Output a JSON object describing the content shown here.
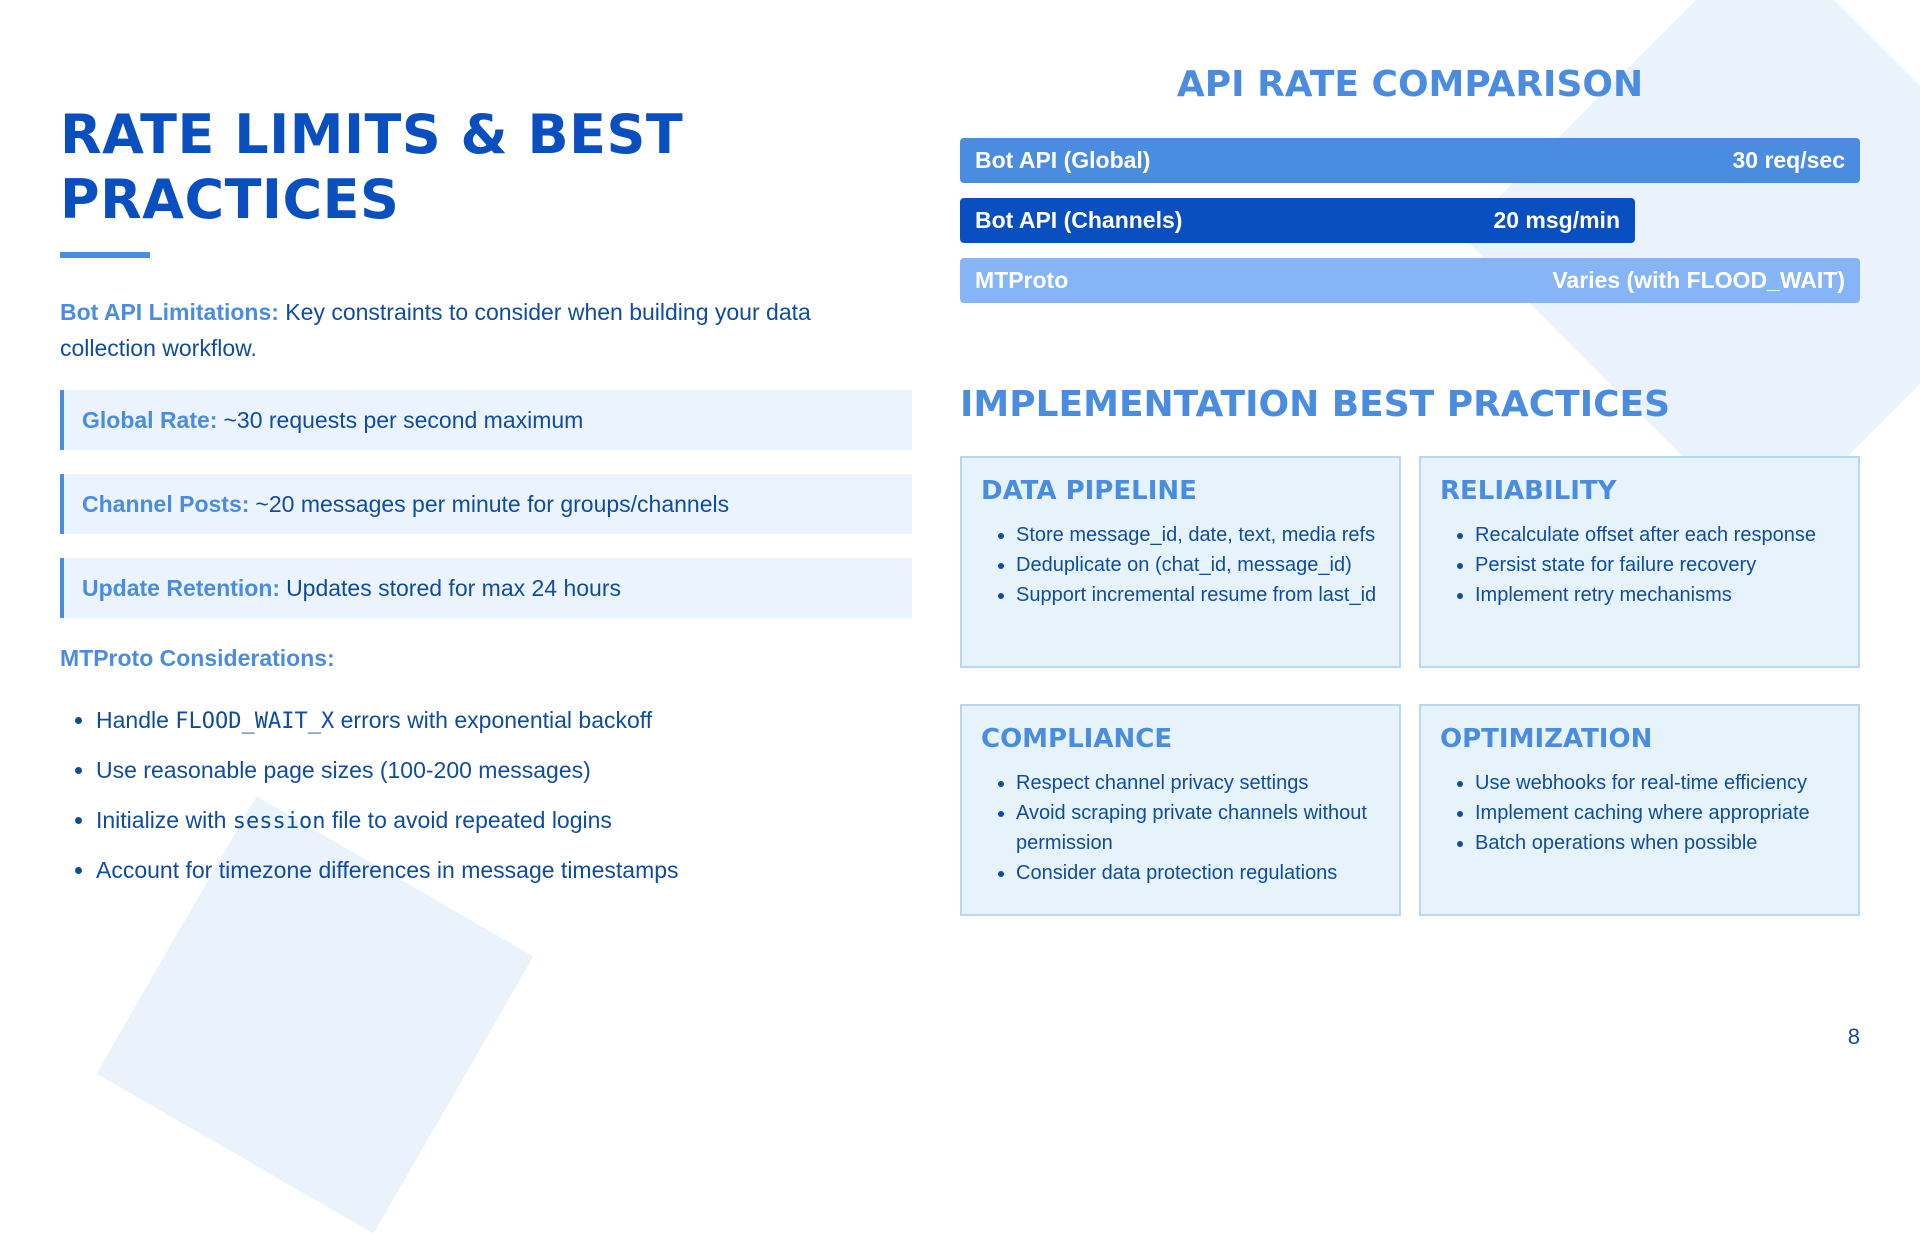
{
  "slide": {
    "title": "RATE LIMITS & BEST PRACTICES",
    "page_number": "8"
  },
  "left": {
    "intro_label": "Bot API Limitations:",
    "intro_text": " Key constraints to consider when building your data collection workflow.",
    "callouts": [
      {
        "label": "Global Rate:",
        "text": "~30 requests per second maximum"
      },
      {
        "label": "Channel Posts:",
        "text": "~20 messages per minute for groups/channels"
      },
      {
        "label": "Update Retention:",
        "text": "Updates stored for max 24 hours"
      }
    ],
    "mtproto_label": "MTProto Considerations:",
    "bullets": [
      {
        "pre": "Handle ",
        "code": "FLOOD_WAIT_X",
        "post": " errors with exponential backoff"
      },
      {
        "pre": "Use reasonable page sizes (100-200 messages)",
        "code": "",
        "post": ""
      },
      {
        "pre": "Initialize with ",
        "code": "session",
        "post": " file to avoid repeated logins"
      },
      {
        "pre": "Account for timezone differences in message timestamps",
        "code": "",
        "post": ""
      }
    ]
  },
  "comparison": {
    "title": "API RATE COMPARISON",
    "bars": [
      {
        "label": "Bot API (Global)",
        "value": "30 req/sec",
        "fill_fraction": 1.0,
        "color": "#4a8de0"
      },
      {
        "label": "Bot API (Channels)",
        "value": "20 msg/min",
        "fill_fraction": 0.75,
        "color": "#0a4fc0"
      },
      {
        "label": "MTProto",
        "value": "Varies (with FLOOD_WAIT)",
        "fill_fraction": 1.0,
        "color": "#85b4f7"
      }
    ]
  },
  "best_practices": {
    "title": "IMPLEMENTATION BEST PRACTICES",
    "cards": [
      {
        "title": "DATA PIPELINE",
        "items": [
          "Store message_id, date, text, media refs",
          "Deduplicate on (chat_id, message_id)",
          "Support incremental resume from last_id"
        ]
      },
      {
        "title": "RELIABILITY",
        "items": [
          "Recalculate offset after each response",
          "Persist state for failure recovery",
          "Implement retry mechanisms"
        ]
      },
      {
        "title": "COMPLIANCE",
        "items": [
          "Respect channel privacy settings",
          "Avoid scraping private channels without permission",
          "Consider data protection regulations"
        ]
      },
      {
        "title": "OPTIMIZATION",
        "items": [
          "Use webhooks for real-time efficiency",
          "Implement caching where appropriate",
          "Batch operations when possible"
        ]
      }
    ]
  },
  "colors": {
    "title_blue": "#0a4fc0",
    "accent_blue": "#4a8de0",
    "text_navy": "#0f4c9e",
    "card_bg": "#e6f3fb"
  }
}
